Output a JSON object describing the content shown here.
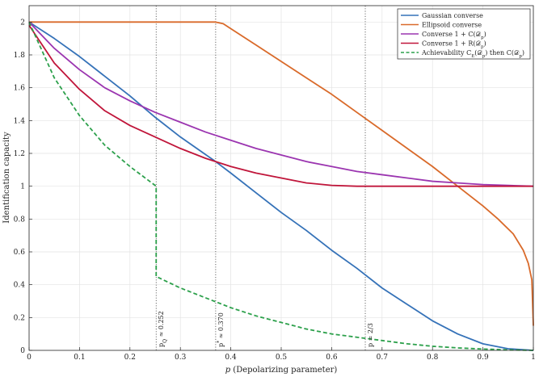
{
  "chart_data": {
    "type": "line",
    "xlabel": "p (Depolarizing parameter)",
    "ylabel": "Identification capacity",
    "xlim": [
      0,
      1
    ],
    "ylim": [
      0,
      2.1
    ],
    "x_ticks": [
      "0",
      "0.1",
      "0.2",
      "0.3",
      "0.4",
      "0.5",
      "0.6",
      "0.7",
      "0.8",
      "0.9",
      "1"
    ],
    "y_ticks": [
      "0",
      "0.2",
      "0.4",
      "0.6",
      "0.8",
      "1",
      "1.2",
      "1.4",
      "1.6",
      "1.8",
      "2"
    ],
    "grid": true,
    "legend_position": "top-right",
    "series": [
      {
        "name": "Gaussian converse",
        "color": "#3572b8",
        "style": "solid",
        "x": [
          0,
          0.05,
          0.1,
          0.15,
          0.2,
          0.25,
          0.3,
          0.37,
          0.4,
          0.45,
          0.5,
          0.55,
          0.6,
          0.65,
          0.7,
          0.75,
          0.8,
          0.85,
          0.9,
          0.95,
          1.0
        ],
        "y": [
          2.0,
          1.9,
          1.79,
          1.67,
          1.55,
          1.42,
          1.3,
          1.15,
          1.08,
          0.96,
          0.84,
          0.73,
          0.61,
          0.5,
          0.38,
          0.28,
          0.18,
          0.1,
          0.04,
          0.01,
          0.0
        ]
      },
      {
        "name": "Ellipsoid converse",
        "color": "#d96a2a",
        "style": "solid",
        "x": [
          0,
          0.1,
          0.2,
          0.3,
          0.37,
          0.385,
          0.4,
          0.45,
          0.5,
          0.55,
          0.6,
          0.65,
          0.7,
          0.75,
          0.8,
          0.85,
          0.9,
          0.93,
          0.96,
          0.98,
          0.99,
          0.997,
          1.0
        ],
        "y": [
          2.0,
          2.0,
          2.0,
          2.0,
          2.0,
          1.99,
          1.96,
          1.86,
          1.76,
          1.66,
          1.56,
          1.45,
          1.34,
          1.23,
          1.12,
          1.0,
          0.88,
          0.8,
          0.71,
          0.61,
          0.53,
          0.43,
          0.15
        ]
      },
      {
        "name": "Converse 1 + C(D_p)",
        "color": "#9b35b0",
        "style": "solid",
        "x": [
          0,
          0.05,
          0.1,
          0.15,
          0.2,
          0.25,
          0.3,
          0.35,
          0.4,
          0.45,
          0.5,
          0.55,
          0.6,
          0.65,
          0.7,
          0.75,
          0.8,
          0.85,
          0.9,
          0.95,
          1.0
        ],
        "y": [
          2.0,
          1.84,
          1.71,
          1.6,
          1.52,
          1.45,
          1.39,
          1.33,
          1.28,
          1.23,
          1.19,
          1.15,
          1.12,
          1.09,
          1.07,
          1.05,
          1.03,
          1.02,
          1.01,
          1.005,
          1.0
        ]
      },
      {
        "name": "Converse 1 + R(D_p)",
        "color": "#c0153a",
        "style": "solid",
        "x": [
          0,
          0.05,
          0.1,
          0.15,
          0.2,
          0.25,
          0.3,
          0.35,
          0.4,
          0.45,
          0.5,
          0.55,
          0.6,
          0.65,
          0.7,
          0.8,
          0.9,
          1.0
        ],
        "y": [
          1.98,
          1.75,
          1.59,
          1.46,
          1.37,
          1.3,
          1.23,
          1.17,
          1.12,
          1.08,
          1.05,
          1.02,
          1.005,
          1.0,
          1.0,
          1.0,
          1.0,
          1.0
        ]
      },
      {
        "name": "Achievability C_E(D_p) then C(D_p)",
        "color": "#2ca04b",
        "style": "dashed",
        "x": [
          0,
          0.05,
          0.1,
          0.15,
          0.2,
          0.252,
          0.252,
          0.3,
          0.35,
          0.4,
          0.45,
          0.5,
          0.55,
          0.6,
          0.65,
          0.7,
          0.75,
          0.8,
          0.85,
          0.9,
          0.95,
          1.0
        ],
        "y": [
          2.0,
          1.66,
          1.43,
          1.25,
          1.12,
          1.0,
          0.45,
          0.38,
          0.32,
          0.26,
          0.21,
          0.17,
          0.13,
          0.1,
          0.08,
          0.06,
          0.04,
          0.025,
          0.015,
          0.008,
          0.003,
          0.0
        ]
      }
    ],
    "legend": [
      {
        "label": "Gaussian converse"
      },
      {
        "label": "Ellipsoid converse"
      },
      {
        "label": "Converse 1 + C(𝒟",
        "sub": "p",
        "tail": ")"
      },
      {
        "label": "Converse 1 + R(𝒟",
        "sub": "p",
        "tail": ")"
      },
      {
        "label": "Achievability C",
        "sub": "E",
        "tail": "(𝒟",
        "sub2": "p",
        "tail2": ") then C(𝒟",
        "sub3": "p",
        "tail3": ")"
      }
    ],
    "annotations": [
      {
        "x": 0.252,
        "main": "p",
        "sub": "Q",
        "rest": " ≈ 0.252"
      },
      {
        "x": 0.37,
        "main": "p",
        "sup": "*",
        "rest": " ≈ 0.370"
      },
      {
        "x": 0.6667,
        "main": "p",
        "rest": " = 2/3"
      }
    ]
  }
}
